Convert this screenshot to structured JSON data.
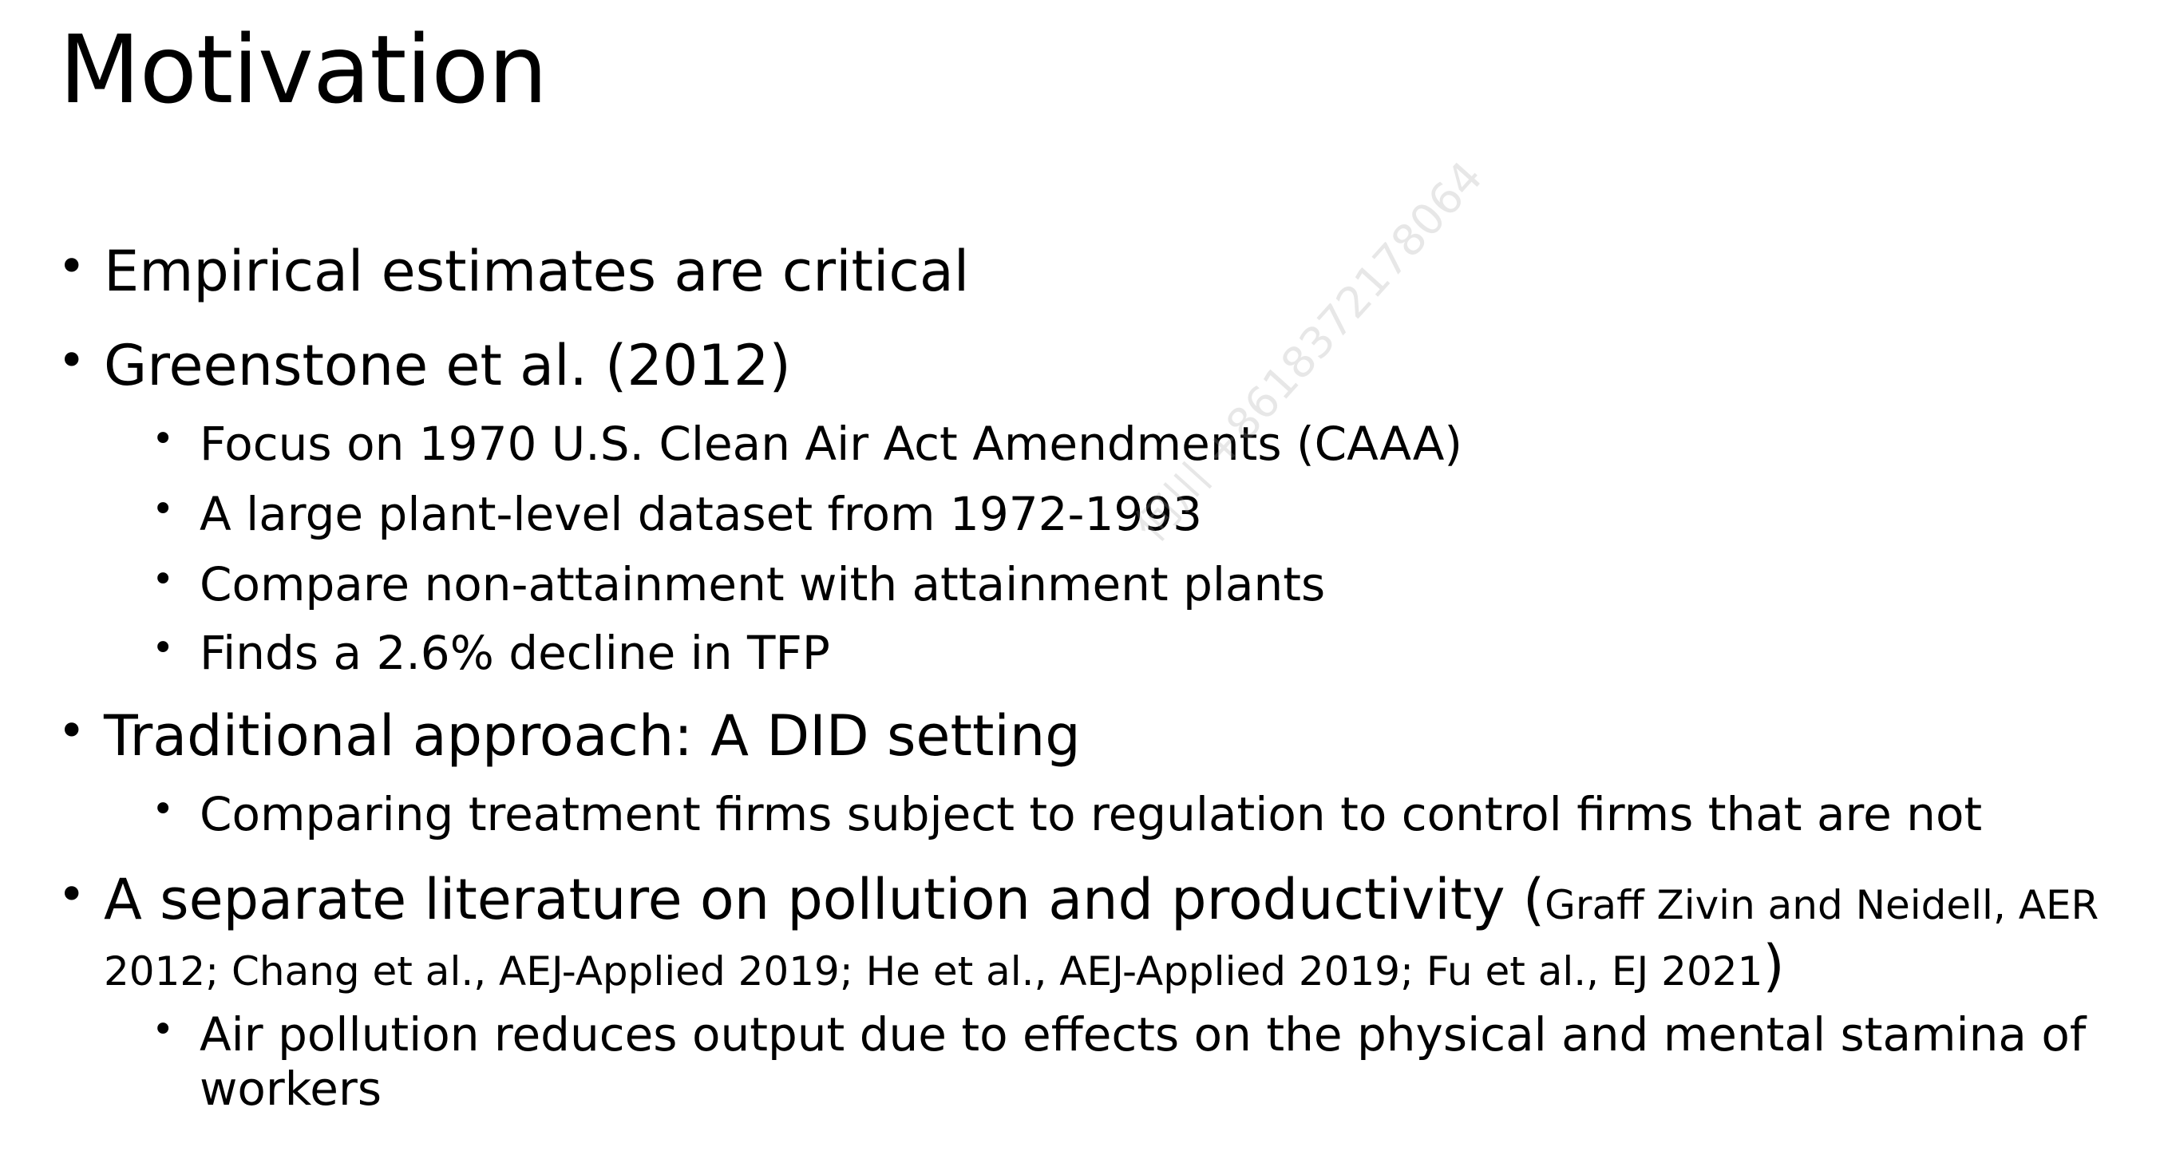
{
  "slide": {
    "title": "Motivation",
    "bullets": [
      {
        "text": "Empirical estimates are critical"
      },
      {
        "text": "Greenstone et al. (2012)",
        "sub": [
          "Focus on 1970 U.S. Clean Air Act Amendments (CAAA)",
          "A large plant-level dataset from 1972-1993",
          "Compare non-attainment with attainment plants",
          "Finds a 2.6% decline in TFP"
        ]
      },
      {
        "text": "Traditional approach: A DID setting",
        "sub": [
          "Comparing treatment firms subject to regulation to control firms that are not"
        ]
      },
      {
        "text": "A separate literature on pollution and productivity",
        "paren_open": "(",
        "citation": "Graff Zivin and Neidell, AER 2012; Chang et al., AEJ-Applied 2019; He et al., AEJ-Applied 2019; Fu et al., EJ 2021",
        "paren_close": ")",
        "sub": [
          "Air pollution reduces output due to effects on the physical and mental stamina of workers"
        ]
      }
    ],
    "bullet_glyph": "•",
    "watermark": "何川 +8618372178064"
  }
}
